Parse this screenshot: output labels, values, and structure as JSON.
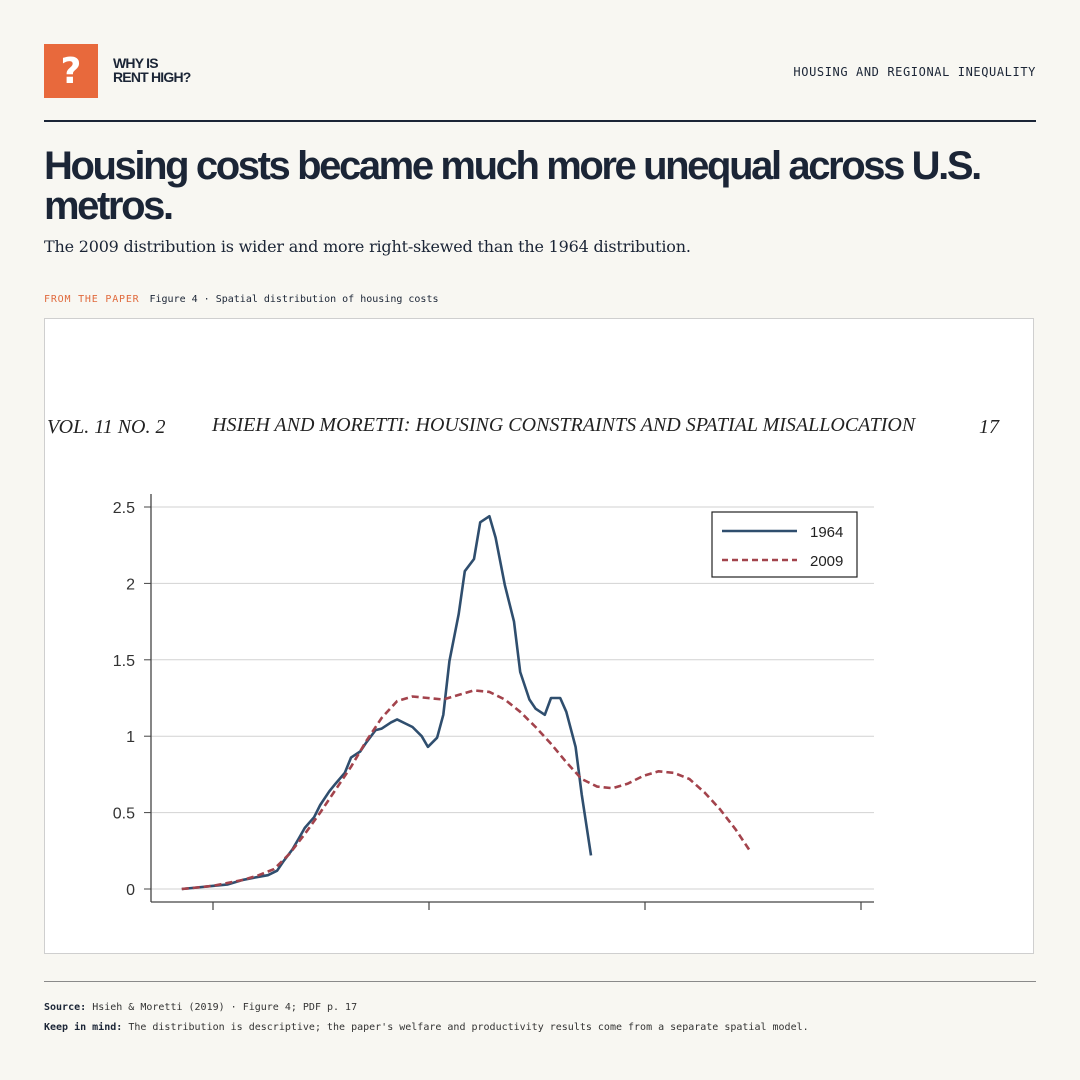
{
  "brand": {
    "logo_glyph": "?",
    "name_line1": "WHY IS",
    "name_line2": "RENT HIGH?",
    "accent": "#e8693c"
  },
  "section_tag": "HOUSING AND REGIONAL INEQUALITY",
  "headline": "Housing costs became much more unequal across U.S. metros.",
  "subhead": "The 2009 distribution is wider and more right-skewed than the 1964 distribution.",
  "figure_caption": {
    "kicker": "FROM THE PAPER",
    "label": "Figure 4 · Spatial distribution of housing costs"
  },
  "page_header": {
    "left": "VOL. 11 NO. 2",
    "center": "HSIEH AND MORETTI: HOUSING CONSTRAINTS AND SPATIAL MISALLOCATION",
    "right": "17"
  },
  "chart_data": {
    "type": "line",
    "title": "",
    "xlabel": "",
    "ylabel": "",
    "ylim": [
      0,
      2.5
    ],
    "xlim": [
      -0.1,
      2.25
    ],
    "yticks": [
      "0",
      "0.5",
      "1",
      "1.5",
      "2",
      "2.5"
    ],
    "grid": "horizontal",
    "legend_position": "top-right",
    "series": [
      {
        "name": "1964",
        "color": "#2f4e6e",
        "style": "solid",
        "points": [
          [
            0,
            0
          ],
          [
            0.05,
            0.01
          ],
          [
            0.1,
            0.02
          ],
          [
            0.15,
            0.03
          ],
          [
            0.2,
            0.06
          ],
          [
            0.25,
            0.08
          ],
          [
            0.28,
            0.09
          ],
          [
            0.31,
            0.12
          ],
          [
            0.33,
            0.18
          ],
          [
            0.36,
            0.26
          ],
          [
            0.38,
            0.33
          ],
          [
            0.4,
            0.4
          ],
          [
            0.43,
            0.47
          ],
          [
            0.45,
            0.55
          ],
          [
            0.48,
            0.64
          ],
          [
            0.5,
            0.69
          ],
          [
            0.53,
            0.76
          ],
          [
            0.55,
            0.86
          ],
          [
            0.58,
            0.9
          ],
          [
            0.6,
            0.96
          ],
          [
            0.63,
            1.04
          ],
          [
            0.65,
            1.05
          ],
          [
            0.68,
            1.09
          ],
          [
            0.7,
            1.11
          ],
          [
            0.73,
            1.08
          ],
          [
            0.75,
            1.06
          ],
          [
            0.78,
            1.0
          ],
          [
            0.8,
            0.93
          ],
          [
            0.83,
            0.99
          ],
          [
            0.85,
            1.14
          ],
          [
            0.87,
            1.49
          ],
          [
            0.9,
            1.8
          ],
          [
            0.92,
            2.08
          ],
          [
            0.95,
            2.16
          ],
          [
            0.97,
            2.4
          ],
          [
            1.0,
            2.44
          ],
          [
            1.02,
            2.3
          ],
          [
            1.05,
            1.99
          ],
          [
            1.08,
            1.75
          ],
          [
            1.1,
            1.42
          ],
          [
            1.13,
            1.24
          ],
          [
            1.15,
            1.18
          ],
          [
            1.18,
            1.14
          ],
          [
            1.2,
            1.25
          ],
          [
            1.23,
            1.25
          ],
          [
            1.25,
            1.16
          ],
          [
            1.28,
            0.93
          ],
          [
            1.3,
            0.62
          ],
          [
            1.33,
            0.22
          ]
        ]
      },
      {
        "name": "2009",
        "color": "#a3434c",
        "style": "dashed",
        "points": [
          [
            0,
            0
          ],
          [
            0.05,
            0.01
          ],
          [
            0.1,
            0.02
          ],
          [
            0.15,
            0.04
          ],
          [
            0.2,
            0.06
          ],
          [
            0.25,
            0.09
          ],
          [
            0.3,
            0.13
          ],
          [
            0.35,
            0.23
          ],
          [
            0.4,
            0.36
          ],
          [
            0.45,
            0.5
          ],
          [
            0.5,
            0.65
          ],
          [
            0.55,
            0.8
          ],
          [
            0.6,
            0.97
          ],
          [
            0.65,
            1.12
          ],
          [
            0.7,
            1.23
          ],
          [
            0.75,
            1.26
          ],
          [
            0.8,
            1.25
          ],
          [
            0.85,
            1.24
          ],
          [
            0.9,
            1.27
          ],
          [
            0.95,
            1.3
          ],
          [
            1.0,
            1.29
          ],
          [
            1.05,
            1.24
          ],
          [
            1.1,
            1.16
          ],
          [
            1.15,
            1.06
          ],
          [
            1.2,
            0.95
          ],
          [
            1.25,
            0.83
          ],
          [
            1.3,
            0.72
          ],
          [
            1.35,
            0.67
          ],
          [
            1.4,
            0.66
          ],
          [
            1.45,
            0.69
          ],
          [
            1.5,
            0.74
          ],
          [
            1.55,
            0.77
          ],
          [
            1.6,
            0.76
          ],
          [
            1.65,
            0.72
          ],
          [
            1.7,
            0.63
          ],
          [
            1.75,
            0.52
          ],
          [
            1.8,
            0.39
          ],
          [
            1.85,
            0.24
          ]
        ]
      }
    ]
  },
  "footer": {
    "source_label": "Source:",
    "source_text": "Hsieh & Moretti (2019) · Figure 4; PDF p. 17",
    "note_label": "Keep in mind:",
    "note_text": "The distribution is descriptive; the paper's welfare and productivity results come from a separate spatial model."
  }
}
